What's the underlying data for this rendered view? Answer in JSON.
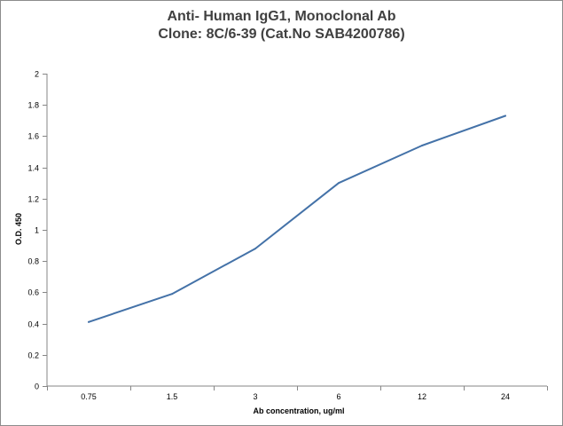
{
  "chart_data": {
    "type": "line",
    "title_line1": "Anti- Human IgG1, Monoclonal Ab",
    "title_line2": "Clone: 8C/6-39 (Cat.No SAB4200786)",
    "xlabel": "Ab concentration, ug/ml",
    "ylabel": "O.D. 450",
    "categories": [
      "0.75",
      "1.5",
      "3",
      "6",
      "12",
      "24"
    ],
    "series": [
      {
        "values": [
          0.41,
          0.59,
          0.88,
          1.3,
          1.54,
          1.73
        ]
      }
    ],
    "ylim": [
      0,
      2
    ],
    "yticks": [
      "0",
      "0.2",
      "0.4",
      "0.6",
      "0.8",
      "1",
      "1.2",
      "1.4",
      "1.6",
      "1.8",
      "2"
    ],
    "grid": false,
    "legend": "none",
    "line_color": "#4472a8"
  }
}
